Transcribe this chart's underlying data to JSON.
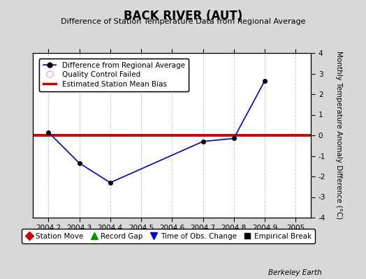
{
  "title": "BACK RIVER (AUT)",
  "subtitle": "Difference of Station Temperature Data from Regional Average",
  "ylabel_right": "Monthly Temperature Anomaly Difference (°C)",
  "watermark": "Berkeley Earth",
  "xlim": [
    2004.15,
    2005.05
  ],
  "ylim": [
    -4,
    4
  ],
  "xticks": [
    2004.2,
    2004.3,
    2004.4,
    2004.5,
    2004.6,
    2004.7,
    2004.8,
    2004.9,
    2005
  ],
  "xtick_labels": [
    "2004.2",
    "2004.3",
    "2004.4",
    "2004.5",
    "2004.6",
    "2004.7",
    "2004.8",
    "2004.9",
    "2005"
  ],
  "yticks": [
    -4,
    -3,
    -2,
    -1,
    0,
    1,
    2,
    3,
    4
  ],
  "ytick_labels": [
    "-4",
    "-3",
    "-2",
    "-1",
    "0",
    "1",
    "2",
    "3",
    "4"
  ],
  "line_x": [
    2004.2,
    2004.3,
    2004.4,
    2004.7,
    2004.8,
    2004.9
  ],
  "line_y": [
    0.15,
    -1.35,
    -2.3,
    -0.3,
    -0.15,
    2.65
  ],
  "bias_y": 0.0,
  "line_color": "#0000bb",
  "bias_color": "#cc0000",
  "background_color": "#d8d8d8",
  "plot_bg_color": "#ffffff",
  "grid_color": "#cccccc",
  "legend1_line_color": "#0000bb",
  "legend1_qc_color": "#ffaacc",
  "legend1_bias_color": "#cc0000",
  "legend2_sm_color": "#cc0000",
  "legend2_rg_color": "#009900",
  "legend2_toc_color": "#0000cc",
  "legend2_eb_color": "#000000"
}
